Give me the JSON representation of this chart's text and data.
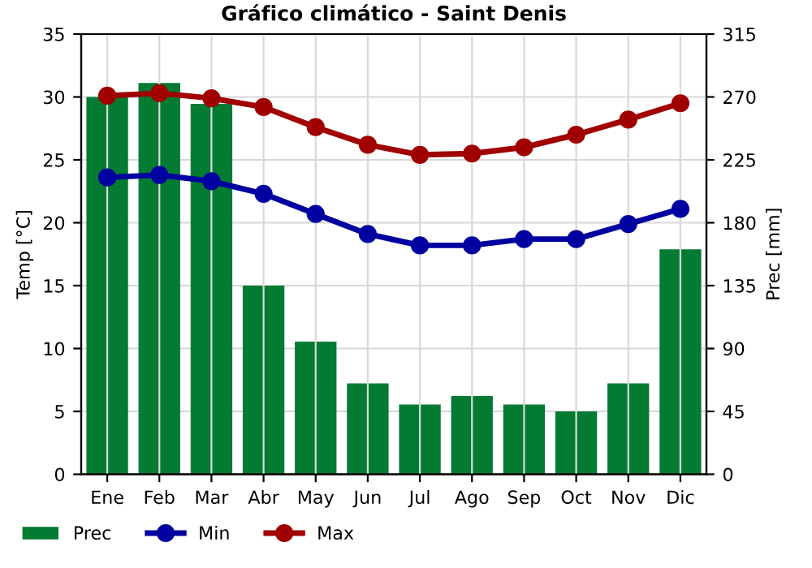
{
  "chart_data": {
    "type": "line",
    "title": "Gráfico climático - Saint Denis",
    "ylabel": "Temp [°C]",
    "y2label": "Prec [mm]",
    "categories": [
      "Ene",
      "Feb",
      "Mar",
      "Abr",
      "May",
      "Jun",
      "Jul",
      "Ago",
      "Sep",
      "Oct",
      "Nov",
      "Dic"
    ],
    "series": [
      {
        "name": "Prec",
        "type": "bar",
        "axis": "y2",
        "color": "#047b33",
        "values": [
          270,
          280,
          265,
          135,
          95,
          65,
          50,
          56,
          50,
          45,
          65,
          161
        ]
      },
      {
        "name": "Min",
        "color": "#0000a0",
        "values": [
          23.6,
          23.8,
          23.3,
          22.3,
          20.7,
          19.1,
          18.2,
          18.2,
          18.7,
          18.7,
          19.9,
          21.1
        ]
      },
      {
        "name": "Max",
        "color": "#a00000",
        "values": [
          30.1,
          30.3,
          29.9,
          29.2,
          27.6,
          26.2,
          25.4,
          25.5,
          26.0,
          27.0,
          28.2,
          29.5
        ]
      }
    ],
    "ylim": [
      0,
      35
    ],
    "yticks": [
      0,
      5,
      10,
      15,
      20,
      25,
      30,
      35
    ],
    "y2lim": [
      0,
      315
    ],
    "y2ticks": [
      0,
      45,
      90,
      135,
      180,
      225,
      270,
      315
    ],
    "grid": true,
    "legend": "bottom",
    "marker": "circle",
    "line_style": "solid"
  }
}
